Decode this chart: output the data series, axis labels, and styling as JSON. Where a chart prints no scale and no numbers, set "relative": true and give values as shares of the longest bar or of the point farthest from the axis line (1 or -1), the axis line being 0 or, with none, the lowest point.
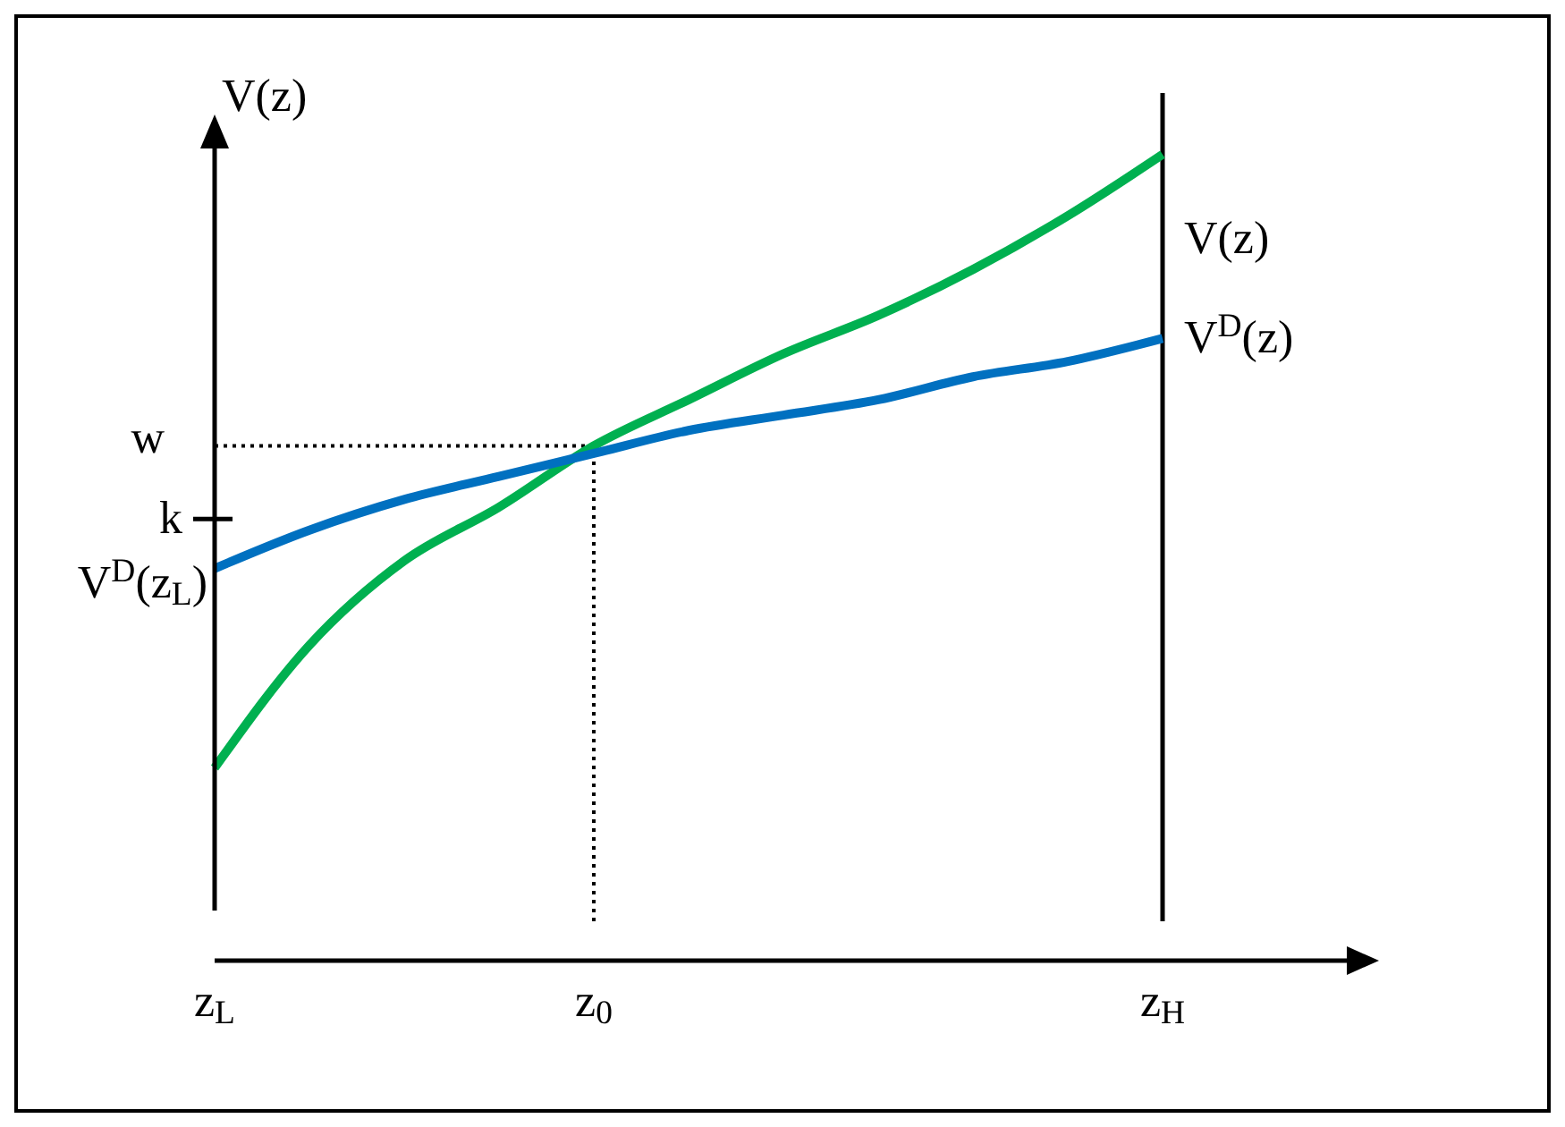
{
  "chart_data": {
    "type": "line",
    "relative": true,
    "marker": "none",
    "ylabel": "V(z)",
    "categories": [
      "z$_{L}$",
      null,
      null,
      null,
      "z$_{0}$",
      null,
      null,
      null,
      null,
      null,
      "z$_{H}$"
    ],
    "series": [
      {
        "name": "V(z)",
        "color": "#00b050",
        "values": [
          0.2,
          0.36,
          0.47,
          0.54,
          0.62,
          0.68,
          0.74,
          0.79,
          0.85,
          0.92,
          1.0
        ]
      },
      {
        "name": "V$^{D}$(z)",
        "color": "#0070c0",
        "values": [
          0.46,
          0.51,
          0.55,
          0.58,
          0.61,
          0.64,
          0.66,
          0.68,
          0.71,
          0.73,
          0.76
        ]
      }
    ],
    "ref_lines": [
      {
        "axis": "y",
        "value": 0.62,
        "label": "w",
        "line_style": "dotted",
        "color": "#000000"
      },
      {
        "axis": "x",
        "value": "z$_{0}$",
        "line_style": "dotted",
        "color": "#000000"
      },
      {
        "axis": "x",
        "value": "z$_{H}$",
        "line_style": "solid",
        "color": "#000000"
      }
    ],
    "annotations": [
      "k",
      {
        "text": "V$^{D}$(z$_{L}$)",
        "x": "z$_{L}$",
        "y": 0.46
      }
    ]
  }
}
